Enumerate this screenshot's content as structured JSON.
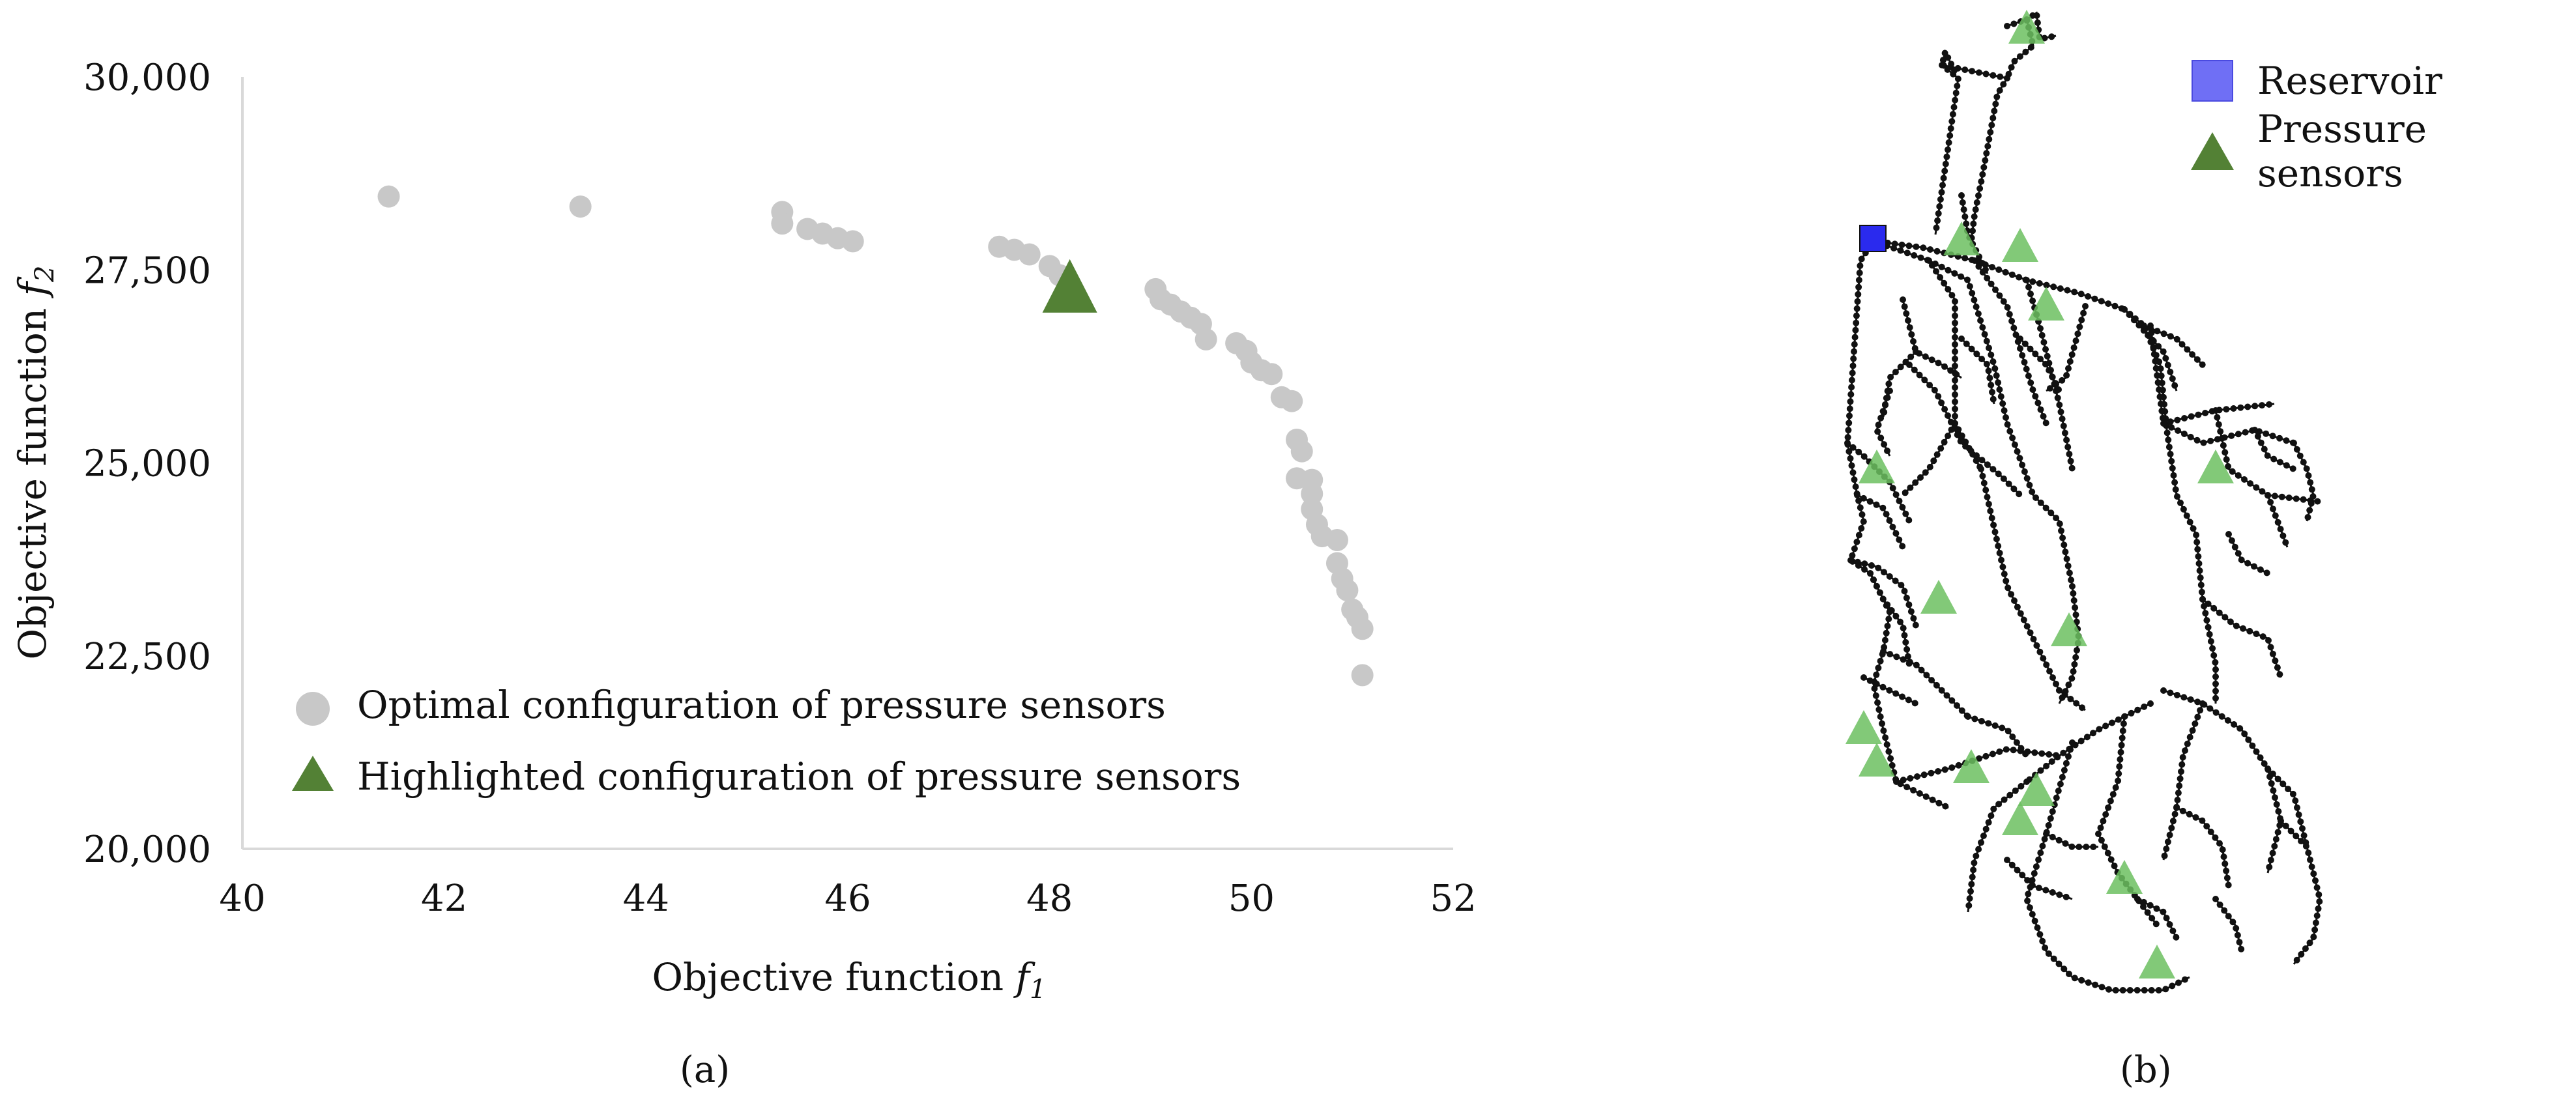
{
  "panels": {
    "a": {
      "label": "(a)"
    },
    "b": {
      "label": "(b)"
    }
  },
  "chart_data": [
    {
      "type": "scatter",
      "xlabel": "Objective function f1",
      "xlabel_text": "Objective function ",
      "xlabel_var": "f",
      "xlabel_sub": "1",
      "ylabel": "Objective function f2",
      "ylabel_text": "Objective function ",
      "ylabel_var": "f",
      "ylabel_sub": "2",
      "xlim": [
        40,
        52
      ],
      "ylim": [
        20000,
        30000
      ],
      "xticks": [
        40,
        42,
        44,
        46,
        48,
        50,
        52
      ],
      "yticks": [
        20000,
        22500,
        25000,
        27500,
        30000
      ],
      "ytick_labels": [
        "20,000",
        "22,500",
        "25,000",
        "27,500",
        "30,000"
      ],
      "grid": false,
      "legend_position": "bottom-left",
      "series": [
        {
          "name": "Optimal configuration of pressure sensors",
          "marker": "circle",
          "color": "#c8c8c8",
          "points": [
            [
              41.45,
              28450
            ],
            [
              43.35,
              28320
            ],
            [
              45.35,
              28250
            ],
            [
              45.35,
              28100
            ],
            [
              45.6,
              28030
            ],
            [
              45.75,
              27970
            ],
            [
              45.9,
              27910
            ],
            [
              46.05,
              27870
            ],
            [
              47.5,
              27800
            ],
            [
              47.65,
              27760
            ],
            [
              47.8,
              27700
            ],
            [
              48.0,
              27550
            ],
            [
              48.1,
              27430
            ],
            [
              49.05,
              27250
            ],
            [
              49.1,
              27120
            ],
            [
              49.2,
              27050
            ],
            [
              49.3,
              26960
            ],
            [
              49.4,
              26880
            ],
            [
              49.5,
              26800
            ],
            [
              49.55,
              26600
            ],
            [
              49.85,
              26550
            ],
            [
              49.95,
              26450
            ],
            [
              50.0,
              26300
            ],
            [
              50.1,
              26200
            ],
            [
              50.2,
              26150
            ],
            [
              50.3,
              25850
            ],
            [
              50.4,
              25800
            ],
            [
              50.45,
              25300
            ],
            [
              50.5,
              25150
            ],
            [
              50.45,
              24800
            ],
            [
              50.6,
              24780
            ],
            [
              50.6,
              24600
            ],
            [
              50.6,
              24400
            ],
            [
              50.65,
              24200
            ],
            [
              50.7,
              24050
            ],
            [
              50.85,
              24000
            ],
            [
              50.85,
              23700
            ],
            [
              50.9,
              23500
            ],
            [
              50.95,
              23350
            ],
            [
              51.0,
              23100
            ],
            [
              51.05,
              23000
            ],
            [
              51.1,
              22850
            ],
            [
              51.1,
              22250
            ]
          ]
        },
        {
          "name": "Highlighted configuration of pressure sensors",
          "marker": "triangle",
          "color": "#538135",
          "points": [
            [
              48.2,
              27250
            ]
          ]
        }
      ]
    }
  ],
  "network_map": {
    "legend": [
      {
        "label": "Reservoir",
        "symbol": "square",
        "color": "#6f6ff5"
      },
      {
        "label": "Pressure sensors",
        "symbol": "triangle",
        "color": "#538135"
      }
    ],
    "colors": {
      "pipe": "#111111",
      "reservoir": "#2a2aee",
      "sensor": "#6cbf60"
    }
  }
}
